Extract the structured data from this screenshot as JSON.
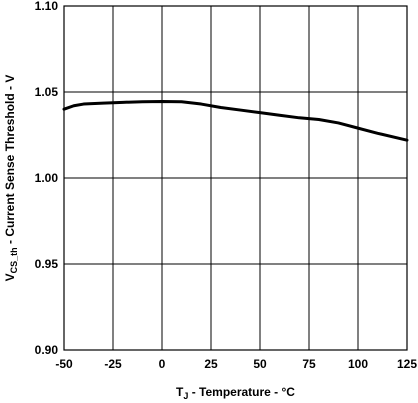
{
  "chart_data": {
    "type": "line",
    "xlabel": {
      "main": "T",
      "sub": "J",
      "rest": " - Temperature - °C"
    },
    "ylabel": {
      "main": "V",
      "sub": "CS_th",
      "rest": " - Current Sense  Threshold - V"
    },
    "xlim": [
      -50,
      125
    ],
    "ylim": [
      0.9,
      1.1
    ],
    "x_ticks": [
      -50,
      -25,
      0,
      25,
      50,
      75,
      100,
      125
    ],
    "x_tick_labels": [
      "-50",
      "-25",
      "0",
      "25",
      "50",
      "75",
      "100",
      "125"
    ],
    "y_ticks": [
      0.9,
      0.95,
      1.0,
      1.05,
      1.1
    ],
    "y_tick_labels": [
      "0.90",
      "0.95",
      "1.00",
      "1.05",
      "1.10"
    ],
    "grid": true,
    "series": [
      {
        "x": [
          -50,
          -45,
          -40,
          -30,
          -20,
          -10,
          0,
          10,
          20,
          30,
          40,
          50,
          60,
          70,
          80,
          90,
          100,
          110,
          125
        ],
        "y": [
          1.04,
          1.042,
          1.043,
          1.0435,
          1.044,
          1.0443,
          1.0445,
          1.0443,
          1.043,
          1.041,
          1.0395,
          1.038,
          1.0365,
          1.035,
          1.034,
          1.032,
          1.029,
          1.026,
          1.022
        ]
      }
    ]
  }
}
